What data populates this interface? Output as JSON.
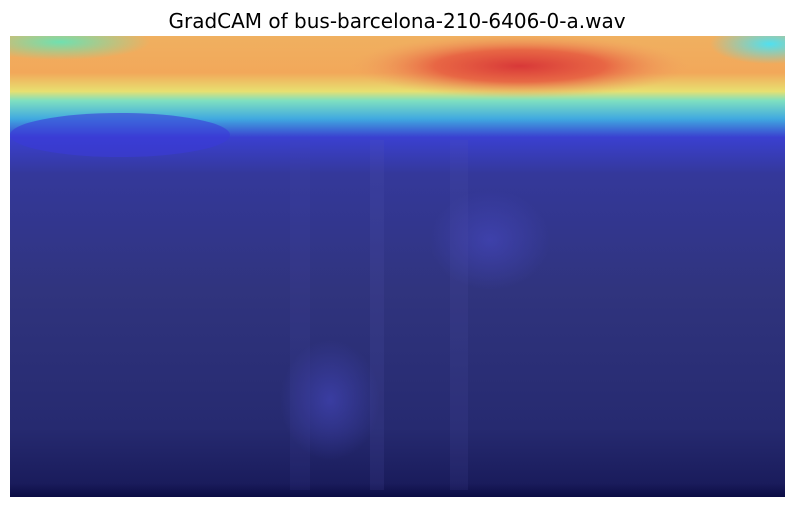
{
  "title": "GradCAM of bus-barcelona-210-6406-0-a.wav"
}
